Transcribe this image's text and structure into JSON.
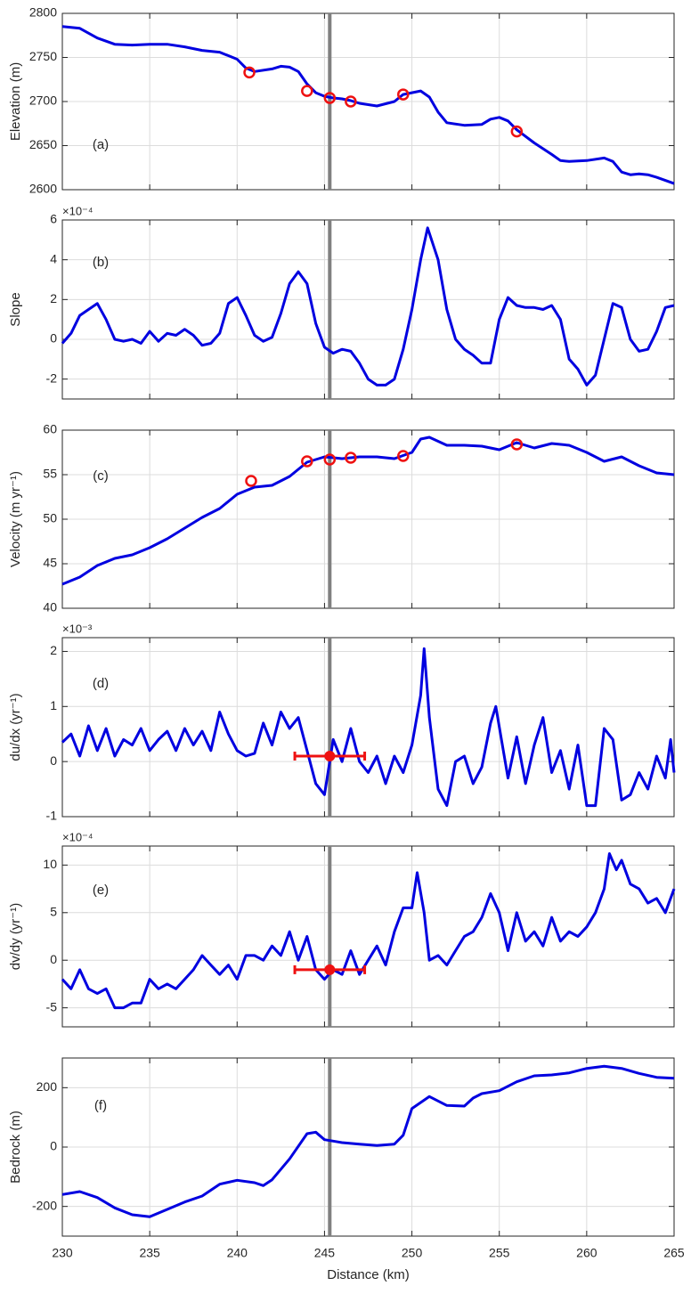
{
  "chart_data": [
    {
      "type": "line",
      "panel_label": "(a)",
      "ylabel": "Elevation (m)",
      "xlim": [
        230,
        265
      ],
      "xticks": [
        230,
        235,
        240,
        245,
        250,
        255,
        260,
        265
      ],
      "ylim": [
        2600,
        2800
      ],
      "yticks": [
        2600,
        2650,
        2700,
        2750,
        2800
      ],
      "grid": true,
      "color": "#0000e0",
      "vline": 245.3,
      "x": [
        230,
        231,
        232,
        233,
        234,
        235,
        236,
        237,
        238,
        239,
        240,
        240.5,
        241,
        242,
        242.5,
        243,
        243.5,
        244,
        244.5,
        245,
        245.5,
        246,
        246.5,
        247,
        248,
        249,
        249.5,
        250,
        250.5,
        251,
        251.5,
        252,
        253,
        254,
        254.5,
        255,
        255.5,
        256,
        257,
        258,
        258.5,
        259,
        260,
        261,
        261.5,
        262,
        262.5,
        263,
        263.5,
        264,
        265
      ],
      "values": [
        2785,
        2783,
        2772,
        2765,
        2764,
        2765,
        2765,
        2762,
        2758,
        2756,
        2748,
        2738,
        2734,
        2737,
        2740,
        2739,
        2734,
        2720,
        2710,
        2706,
        2704,
        2703,
        2701,
        2698,
        2695,
        2700,
        2708,
        2710,
        2712,
        2705,
        2688,
        2676,
        2673,
        2674,
        2680,
        2682,
        2678,
        2668,
        2653,
        2640,
        2633,
        2632,
        2633,
        2636,
        2632,
        2620,
        2617,
        2618,
        2617,
        2614,
        2607
      ],
      "markers": {
        "color": "#ee1111",
        "x": [
          240.7,
          244,
          245.3,
          246.5,
          249.5,
          256
        ],
        "values": [
          2733,
          2712,
          2704,
          2700,
          2708,
          2666
        ]
      }
    },
    {
      "type": "line",
      "panel_label": "(b)",
      "ylabel": "Slope",
      "multiplier": "×10⁻⁴",
      "xlim": [
        230,
        265
      ],
      "xticks": [
        230,
        235,
        240,
        245,
        250,
        255,
        260,
        265
      ],
      "ylim": [
        -3,
        6
      ],
      "yticks": [
        -2,
        0,
        2,
        4,
        6
      ],
      "grid": true,
      "color": "#0000e0",
      "vline": 245.3,
      "x": [
        230,
        230.5,
        231,
        231.5,
        232,
        232.5,
        233,
        233.5,
        234,
        234.5,
        235,
        235.5,
        236,
        236.5,
        237,
        237.5,
        238,
        238.5,
        239,
        239.5,
        240,
        240.5,
        241,
        241.5,
        242,
        242.5,
        243,
        243.5,
        244,
        244.5,
        245,
        245.5,
        246,
        246.5,
        247,
        247.5,
        248,
        248.5,
        249,
        249.5,
        250,
        250.5,
        250.9,
        251.5,
        252,
        252.5,
        253,
        253.5,
        254,
        254.5,
        255,
        255.5,
        256,
        256.5,
        257,
        257.5,
        258,
        258.5,
        259,
        259.5,
        260,
        260.5,
        261,
        261.5,
        262,
        262.5,
        263,
        263.5,
        264,
        264.5,
        265
      ],
      "values": [
        -0.2,
        0.3,
        1.2,
        1.5,
        1.8,
        1,
        0,
        -0.1,
        0,
        -0.2,
        0.4,
        -0.1,
        0.3,
        0.2,
        0.5,
        0.2,
        -0.3,
        -0.2,
        0.3,
        1.8,
        2.1,
        1.2,
        0.2,
        -0.1,
        0.1,
        1.3,
        2.8,
        3.4,
        2.8,
        0.8,
        -0.4,
        -0.7,
        -0.5,
        -0.6,
        -1.2,
        -2,
        -2.3,
        -2.3,
        -2,
        -0.5,
        1.5,
        4,
        5.6,
        4,
        1.5,
        0,
        -0.5,
        -0.8,
        -1.2,
        -1.2,
        1,
        2.1,
        1.7,
        1.6,
        1.6,
        1.5,
        1.7,
        1,
        -1,
        -1.5,
        -2.3,
        -1.8,
        0,
        1.8,
        1.6,
        0,
        -0.6,
        -0.5,
        0.4,
        1.6,
        1.7
      ]
    },
    {
      "type": "line",
      "panel_label": "(c)",
      "ylabel": "Velocity (m yr⁻¹)",
      "xlim": [
        230,
        265
      ],
      "xticks": [
        230,
        235,
        240,
        245,
        250,
        255,
        260,
        265
      ],
      "ylim": [
        40,
        60
      ],
      "yticks": [
        40,
        45,
        50,
        55,
        60
      ],
      "grid": true,
      "color": "#0000e0",
      "vline": 245.3,
      "x": [
        230,
        231,
        232,
        233,
        234,
        235,
        236,
        237,
        238,
        239,
        240,
        241,
        242,
        243,
        244,
        245,
        246,
        247,
        248,
        249,
        250,
        250.5,
        251,
        252,
        253,
        254,
        255,
        256,
        257,
        258,
        259,
        260,
        261,
        262,
        263,
        264,
        265
      ],
      "values": [
        42.7,
        43.5,
        44.8,
        45.6,
        46,
        46.8,
        47.8,
        49,
        50.2,
        51.2,
        52.8,
        53.6,
        53.8,
        54.8,
        56.4,
        57,
        56.8,
        57,
        57,
        56.8,
        57.5,
        59,
        59.2,
        58.3,
        58.3,
        58.2,
        57.8,
        58.6,
        58,
        58.5,
        58.3,
        57.5,
        56.5,
        57,
        56,
        55.2,
        55
      ],
      "markers": {
        "color": "#ee1111",
        "x": [
          240.8,
          244,
          245.3,
          246.5,
          249.5,
          256
        ],
        "values": [
          54.3,
          56.5,
          56.7,
          56.9,
          57.1,
          58.4
        ]
      }
    },
    {
      "type": "line",
      "panel_label": "(d)",
      "ylabel": "du/dx (yr⁻¹)",
      "multiplier": "×10⁻³",
      "xlim": [
        230,
        265
      ],
      "xticks": [
        230,
        235,
        240,
        245,
        250,
        255,
        260,
        265
      ],
      "ylim": [
        -1,
        2.25
      ],
      "yticks": [
        -1,
        0,
        1,
        2
      ],
      "grid": true,
      "color": "#0000e0",
      "vline": 245.3,
      "x": [
        230,
        230.5,
        231,
        231.5,
        232,
        232.5,
        233,
        233.5,
        234,
        234.5,
        235,
        235.5,
        236,
        236.5,
        237,
        237.5,
        238,
        238.5,
        239,
        239.5,
        240,
        240.5,
        241,
        241.5,
        242,
        242.5,
        243,
        243.5,
        244,
        244.5,
        245,
        245.3,
        245.5,
        246,
        246.5,
        247,
        247.5,
        248,
        248.5,
        249,
        249.5,
        250,
        250.5,
        250.7,
        251,
        251.5,
        252,
        252.5,
        253,
        253.5,
        254,
        254.5,
        254.8,
        255.5,
        256,
        256.5,
        257,
        257.5,
        258,
        258.5,
        259,
        259.5,
        260,
        260.5,
        261,
        261.5,
        262,
        262.5,
        263,
        263.5,
        264,
        264.5,
        264.8,
        265
      ],
      "values": [
        0.35,
        0.5,
        0.1,
        0.65,
        0.2,
        0.6,
        0.1,
        0.4,
        0.3,
        0.6,
        0.2,
        0.4,
        0.55,
        0.2,
        0.6,
        0.3,
        0.55,
        0.2,
        0.9,
        0.5,
        0.2,
        0.1,
        0.15,
        0.7,
        0.3,
        0.9,
        0.6,
        0.8,
        0.2,
        -0.4,
        -0.6,
        0,
        0.4,
        0,
        0.6,
        0,
        -0.2,
        0.1,
        -0.4,
        0.1,
        -0.2,
        0.3,
        1.2,
        2.05,
        0.8,
        -0.5,
        -0.8,
        0,
        0.1,
        -0.4,
        -0.1,
        0.7,
        1.0,
        -0.3,
        0.45,
        -0.4,
        0.3,
        0.8,
        -0.2,
        0.2,
        -0.5,
        0.3,
        -0.8,
        -0.8,
        0.6,
        0.4,
        -0.7,
        -0.6,
        -0.2,
        -0.5,
        0.1,
        -0.3,
        0.4,
        -0.2
      ],
      "errorbar": {
        "color": "#ee1111",
        "x": 245.3,
        "value": 0.1,
        "xlow": 243.3,
        "xhigh": 247.3
      }
    },
    {
      "type": "line",
      "panel_label": "(e)",
      "ylabel": "dv/dy (yr⁻¹)",
      "multiplier": "×10⁻⁴",
      "xlim": [
        230,
        265
      ],
      "xticks": [
        230,
        235,
        240,
        245,
        250,
        255,
        260,
        265
      ],
      "ylim": [
        -7,
        12
      ],
      "yticks": [
        -5,
        0,
        5,
        10
      ],
      "grid": true,
      "color": "#0000e0",
      "vline": 245.3,
      "x": [
        230,
        230.5,
        231,
        231.5,
        232,
        232.5,
        233,
        233.5,
        234,
        234.5,
        235,
        235.5,
        236,
        236.5,
        237,
        237.5,
        238,
        238.5,
        239,
        239.5,
        240,
        240.5,
        241,
        241.5,
        242,
        242.5,
        243,
        243.5,
        244,
        244.5,
        245,
        245.5,
        246,
        246.5,
        247,
        247.5,
        248,
        248.5,
        249,
        249.5,
        250,
        250.3,
        250.7,
        251,
        251.5,
        252,
        252.5,
        253,
        253.5,
        254,
        254.5,
        255,
        255.5,
        256,
        256.5,
        257,
        257.5,
        258,
        258.5,
        259,
        259.5,
        260,
        260.5,
        261,
        261.3,
        261.7,
        262,
        262.5,
        263,
        263.5,
        264,
        264.5,
        265
      ],
      "values": [
        -2,
        -3,
        -1,
        -3,
        -3.5,
        -3,
        -5,
        -5,
        -4.5,
        -4.5,
        -2,
        -3,
        -2.5,
        -3,
        -2,
        -1,
        0.5,
        -0.5,
        -1.5,
        -0.5,
        -2,
        0.5,
        0.5,
        0,
        1.5,
        0.5,
        3,
        0,
        2.5,
        -1,
        -2,
        -1,
        -1.5,
        1,
        -1.5,
        0,
        1.5,
        -0.5,
        3,
        5.5,
        5.5,
        9.2,
        5,
        0,
        0.5,
        -0.5,
        1,
        2.5,
        3,
        4.5,
        7,
        5,
        1,
        5,
        2,
        3,
        1.5,
        4.5,
        2,
        3,
        2.5,
        3.5,
        5,
        7.5,
        11.2,
        9.5,
        10.5,
        8,
        7.5,
        6,
        6.5,
        5,
        7.5
      ],
      "errorbar": {
        "color": "#ee1111",
        "x": 245.3,
        "value": -1,
        "xlow": 243.3,
        "xhigh": 247.3
      }
    },
    {
      "type": "line",
      "panel_label": "(f)",
      "ylabel": "Bedrock (m)",
      "xlabel": "Distance (km)",
      "xlim": [
        230,
        265
      ],
      "xticks": [
        230,
        235,
        240,
        245,
        250,
        255,
        260,
        265
      ],
      "ylim": [
        -300,
        300
      ],
      "yticks": [
        -200,
        0,
        200
      ],
      "grid": true,
      "color": "#0000e0",
      "vline": 245.3,
      "x": [
        230,
        231,
        232,
        233,
        234,
        235,
        236,
        237,
        238,
        239,
        240,
        241,
        241.5,
        242,
        243,
        244,
        244.5,
        245,
        246,
        247,
        248,
        249,
        249.5,
        250,
        251,
        251.5,
        252,
        253,
        253.5,
        254,
        255,
        256,
        257,
        258,
        259,
        260,
        261,
        262,
        263,
        264,
        265
      ],
      "values": [
        -160,
        -150,
        -170,
        -205,
        -228,
        -235,
        -210,
        -185,
        -165,
        -125,
        -112,
        -120,
        -130,
        -110,
        -40,
        45,
        50,
        25,
        15,
        10,
        5,
        10,
        40,
        130,
        170,
        155,
        140,
        138,
        165,
        180,
        190,
        220,
        240,
        243,
        250,
        265,
        272,
        265,
        248,
        235,
        232
      ]
    }
  ]
}
